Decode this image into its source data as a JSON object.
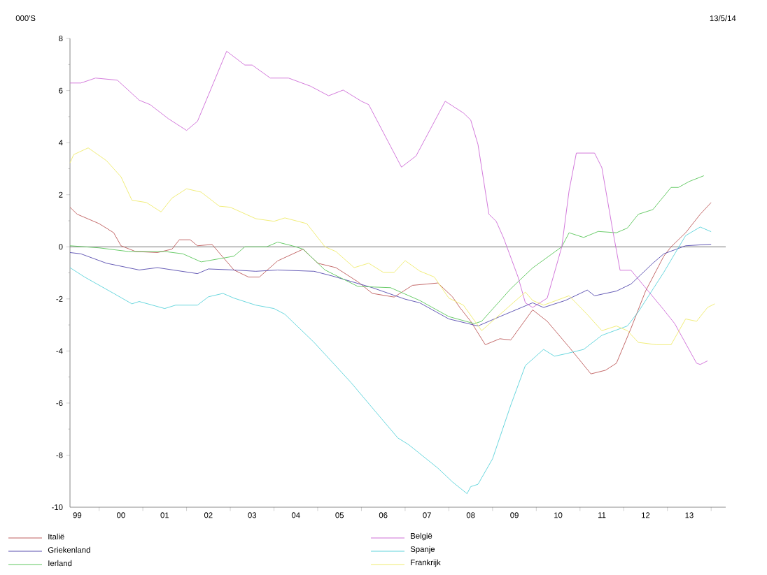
{
  "chart_data": {
    "type": "line",
    "annotations": [
      "000'S",
      "13/5/14"
    ],
    "xlim": [
      "1999-05-01",
      "2014-05-01"
    ],
    "xticks": [
      {
        "value": "2000-01",
        "label": null
      },
      {
        "value": "2001-01",
        "label": null
      },
      {
        "value": "2002-01",
        "label": null
      },
      {
        "value": "2003-01",
        "label": null
      },
      {
        "value": "2004-01",
        "label": null
      },
      {
        "value": "2005-01",
        "label": null
      },
      {
        "value": "2006-01",
        "label": null
      },
      {
        "value": "2007-01",
        "label": null
      },
      {
        "value": "2008-01",
        "label": null
      },
      {
        "value": "2009-01",
        "label": null
      },
      {
        "value": "2010-01",
        "label": null
      },
      {
        "value": "2011-01",
        "label": null
      },
      {
        "value": "2012-01",
        "label": null
      },
      {
        "value": "2013-01",
        "label": null
      },
      {
        "value": "2014-01",
        "label": null
      },
      {
        "value": "1999-07",
        "label": "99"
      },
      {
        "value": "2000-07",
        "label": "00"
      },
      {
        "value": "2001-07",
        "label": "01"
      },
      {
        "value": "2002-07",
        "label": "02"
      },
      {
        "value": "2003-07",
        "label": "03"
      },
      {
        "value": "2004-07",
        "label": "04"
      },
      {
        "value": "2005-07",
        "label": "05"
      },
      {
        "value": "2006-07",
        "label": "06"
      },
      {
        "value": "2007-07",
        "label": "07"
      },
      {
        "value": "2008-07",
        "label": "08"
      },
      {
        "value": "2009-07",
        "label": "09"
      },
      {
        "value": "2010-07",
        "label": "10"
      },
      {
        "value": "2011-07",
        "label": "11"
      },
      {
        "value": "2012-07",
        "label": "12"
      },
      {
        "value": "2013-07",
        "label": "13"
      }
    ],
    "ylim": [
      -10,
      8
    ],
    "yticks": [
      -10,
      -8,
      -6,
      -4,
      -2,
      0,
      2,
      4,
      6,
      8
    ],
    "legend": "bottom",
    "marker": "none",
    "line_style": "solid",
    "ref_lines": [
      {
        "axis": "y",
        "value": 0,
        "color": "#505050"
      }
    ],
    "series": [
      {
        "name": "Italië",
        "color": "#c06060",
        "x": [
          "1999-05",
          "1999-07",
          "2000-01",
          "2000-05",
          "2000-07",
          "2000-11",
          "2001-05",
          "2001-09",
          "2001-11",
          "2002-02",
          "2002-04",
          "2002-08",
          "2003-02",
          "2003-06",
          "2003-09",
          "2004-02",
          "2004-09",
          "2005-01",
          "2005-06",
          "2005-12",
          "2006-04",
          "2006-10",
          "2007-03",
          "2007-10",
          "2008-02",
          "2008-04",
          "2008-07",
          "2008-11",
          "2009-03",
          "2009-06",
          "2009-12",
          "2010-04",
          "2010-10",
          "2011-04",
          "2011-08",
          "2011-11",
          "2012-03",
          "2012-07",
          "2012-12",
          "2013-02",
          "2013-06",
          "2013-10",
          "2014-01"
        ],
        "values": [
          1.52,
          1.25,
          0.89,
          0.54,
          0.04,
          -0.18,
          -0.22,
          -0.09,
          0.27,
          0.27,
          0.04,
          0.09,
          -0.89,
          -1.16,
          -1.16,
          -0.54,
          -0.09,
          -0.63,
          -0.8,
          -1.34,
          -1.79,
          -1.93,
          -1.48,
          -1.39,
          -1.92,
          -2.33,
          -2.86,
          -3.76,
          -3.53,
          -3.58,
          -2.42,
          -2.86,
          -3.85,
          -4.88,
          -4.74,
          -4.47,
          -3.13,
          -1.7,
          -0.36,
          0,
          0.54,
          1.25,
          1.7
        ]
      },
      {
        "name": "Griekenland",
        "color": "#5a50b0",
        "x": [
          "1999-05",
          "1999-08",
          "2000-03",
          "2000-12",
          "2001-05",
          "2002-04",
          "2002-07",
          "2003-02",
          "2003-08",
          "2004-02",
          "2004-12",
          "2005-05",
          "2006-04",
          "2007-01",
          "2007-05",
          "2008-01",
          "2008-09",
          "2009-03",
          "2009-12",
          "2010-03",
          "2010-09",
          "2011-03",
          "2011-05",
          "2011-11",
          "2012-03",
          "2012-09",
          "2012-12",
          "2013-06",
          "2014-01"
        ],
        "values": [
          -0.22,
          -0.27,
          -0.63,
          -0.89,
          -0.8,
          -1.03,
          -0.85,
          -0.89,
          -0.94,
          -0.89,
          -0.94,
          -1.12,
          -1.57,
          -2.01,
          -2.15,
          -2.77,
          -3.04,
          -2.68,
          -2.15,
          -2.33,
          -2.06,
          -1.66,
          -1.88,
          -1.7,
          -1.43,
          -0.63,
          -0.27,
          0.04,
          0.1
        ]
      },
      {
        "name": "Ierland",
        "color": "#60c860",
        "x": [
          "1999-05",
          "2000-01",
          "2000-09",
          "2001-07",
          "2001-12",
          "2002-05",
          "2003-02",
          "2003-05",
          "2003-11",
          "2004-02",
          "2004-06",
          "2004-09",
          "2005-03",
          "2005-12",
          "2006-09",
          "2007-05",
          "2008-01",
          "2008-08",
          "2008-10",
          "2009-06",
          "2009-12",
          "2010-08",
          "2010-10",
          "2011-02",
          "2011-06",
          "2011-11",
          "2012-02",
          "2012-05",
          "2012-09",
          "2013-02",
          "2013-04",
          "2013-07",
          "2013-11"
        ],
        "values": [
          0.04,
          -0.04,
          -0.18,
          -0.18,
          -0.27,
          -0.58,
          -0.36,
          0,
          0,
          0.18,
          0.04,
          -0.09,
          -0.89,
          -1.52,
          -1.57,
          -2.06,
          -2.68,
          -2.95,
          -2.86,
          -1.61,
          -0.81,
          0,
          0.54,
          0.36,
          0.59,
          0.54,
          0.72,
          1.25,
          1.43,
          2.28,
          2.28,
          2.51,
          2.73
        ]
      },
      {
        "name": "België",
        "color": "#d070d8",
        "x": [
          "1999-05",
          "1999-08",
          "1999-12",
          "2000-06",
          "2000-12",
          "2001-03",
          "2001-08",
          "2002-01",
          "2002-04",
          "2002-12",
          "2003-05",
          "2003-07",
          "2003-12",
          "2004-05",
          "2004-11",
          "2005-04",
          "2005-08",
          "2006-01",
          "2006-03",
          "2006-12",
          "2007-04",
          "2007-12",
          "2008-05",
          "2008-07",
          "2008-09",
          "2008-12",
          "2009-02",
          "2009-04",
          "2009-08",
          "2009-10",
          "2009-12",
          "2010-04",
          "2010-08",
          "2010-10",
          "2010-12",
          "2011-05",
          "2011-07",
          "2011-10",
          "2011-12",
          "2012-03",
          "2012-12",
          "2013-03",
          "2013-09",
          "2013-10",
          "2013-12"
        ],
        "values": [
          6.29,
          6.29,
          6.48,
          6.4,
          5.63,
          5.46,
          4.92,
          4.47,
          4.82,
          7.51,
          6.98,
          6.98,
          6.48,
          6.48,
          6.17,
          5.8,
          6.02,
          5.59,
          5.46,
          3.06,
          3.49,
          5.59,
          5.14,
          4.87,
          3.93,
          1.25,
          0.98,
          0.35,
          -1.16,
          -2.15,
          -2.33,
          -1.97,
          0,
          2.15,
          3.6,
          3.6,
          3.04,
          0.62,
          -0.9,
          -0.9,
          -2.42,
          -2.95,
          -4.47,
          -4.52,
          -4.38
        ]
      },
      {
        "name": "Spanje",
        "color": "#60d4dc",
        "x": [
          "1999-05",
          "1999-09",
          "2000-05",
          "2000-10",
          "2000-12",
          "2001-07",
          "2001-10",
          "2002-04",
          "2002-07",
          "2002-11",
          "2003-02",
          "2003-08",
          "2004-01",
          "2004-04",
          "2004-12",
          "2005-10",
          "2006-05",
          "2006-11",
          "2007-02",
          "2007-10",
          "2008-02",
          "2008-06",
          "2008-07",
          "2008-09",
          "2009-01",
          "2009-06",
          "2009-10",
          "2010-03",
          "2010-06",
          "2010-09",
          "2011-02",
          "2011-07",
          "2012-02",
          "2012-05",
          "2012-12",
          "2013-03",
          "2013-06",
          "2013-10",
          "2014-01"
        ],
        "values": [
          -0.8,
          -1.16,
          -1.79,
          -2.19,
          -2.1,
          -2.37,
          -2.24,
          -2.24,
          -1.92,
          -1.79,
          -1.97,
          -2.24,
          -2.37,
          -2.59,
          -3.67,
          -5.19,
          -6.35,
          -7.34,
          -7.6,
          -8.5,
          -9.03,
          -9.48,
          -9.21,
          -9.12,
          -8.14,
          -6.08,
          -4.56,
          -3.94,
          -4.2,
          -4.11,
          -3.94,
          -3.4,
          -3.04,
          -2.5,
          -0.98,
          -0.27,
          0.43,
          0.76,
          0.58
        ]
      },
      {
        "name": "Frankrijk",
        "color": "#f0ec70",
        "x": [
          "1999-05",
          "1999-06",
          "1999-10",
          "2000-03",
          "2000-07",
          "2000-10",
          "2001-02",
          "2001-06",
          "2001-09",
          "2002-01",
          "2002-05",
          "2002-10",
          "2003-01",
          "2003-08",
          "2004-01",
          "2004-04",
          "2004-10",
          "2005-03",
          "2005-06",
          "2005-11",
          "2006-03",
          "2006-07",
          "2006-10",
          "2007-01",
          "2007-05",
          "2007-09",
          "2008-01",
          "2008-05",
          "2008-10",
          "2009-03",
          "2009-10",
          "2009-12",
          "2010-03",
          "2010-10",
          "2011-03",
          "2011-07",
          "2011-11",
          "2012-02",
          "2012-05",
          "2012-10",
          "2013-02",
          "2013-06",
          "2013-09",
          "2013-12",
          "2014-02"
        ],
        "values": [
          3.22,
          3.54,
          3.8,
          3.31,
          2.69,
          1.79,
          1.7,
          1.34,
          1.87,
          2.23,
          2.1,
          1.56,
          1.52,
          1.08,
          0.98,
          1.11,
          0.89,
          0,
          -0.18,
          -0.8,
          -0.63,
          -0.98,
          -0.98,
          -0.53,
          -0.93,
          -1.16,
          -1.97,
          -2.24,
          -3.22,
          -2.6,
          -1.74,
          -2.06,
          -2.24,
          -1.88,
          -2.6,
          -3.22,
          -3.04,
          -3.22,
          -3.67,
          -3.76,
          -3.76,
          -2.77,
          -2.86,
          -2.33,
          -2.19
        ]
      }
    ]
  }
}
